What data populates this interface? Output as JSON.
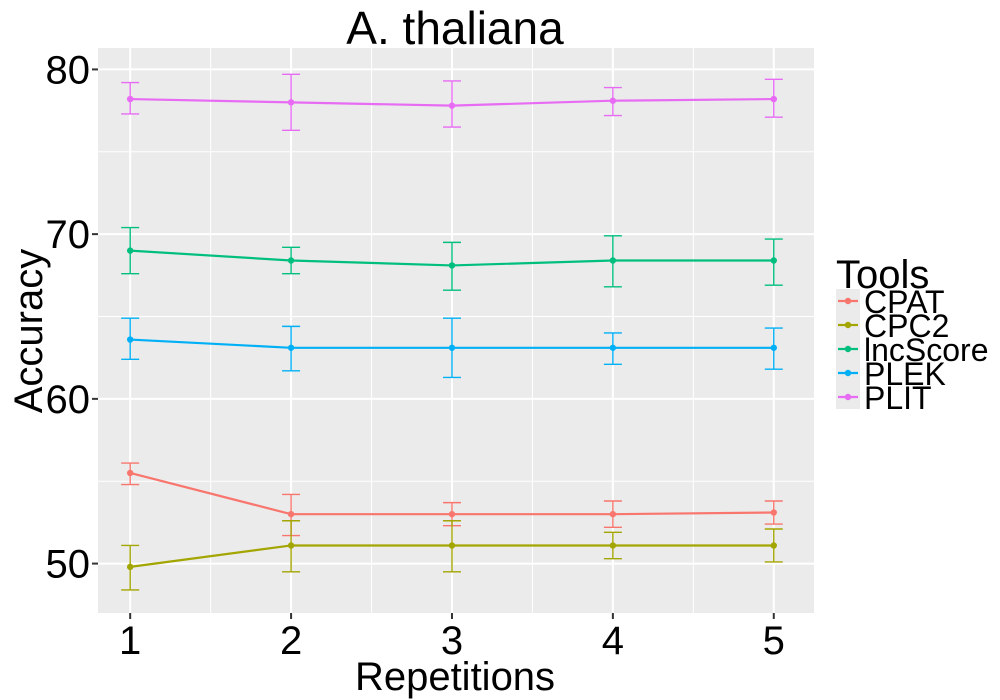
{
  "chart_data": {
    "type": "line",
    "title": "A. thaliana",
    "xlabel": "Repetitions",
    "ylabel": "Accuracy",
    "x": [
      1,
      2,
      3,
      4,
      5
    ],
    "x_ticks": [
      "1",
      "2",
      "3",
      "4",
      "5"
    ],
    "xlim": [
      0.8,
      5.25
    ],
    "y_ticks": [
      50,
      60,
      70,
      80
    ],
    "y_tick_labels": [
      "50",
      "60",
      "70",
      "80"
    ],
    "ylim": [
      47,
      81.3
    ],
    "grid": true,
    "legend": {
      "title": "Tools",
      "position": "right"
    },
    "series": [
      {
        "name": "CPAT",
        "color": "#F8766D",
        "values": [
          55.5,
          53.0,
          53.0,
          53.0,
          53.1
        ],
        "lower": [
          54.8,
          51.7,
          52.3,
          52.2,
          52.4
        ],
        "upper": [
          56.1,
          54.2,
          53.7,
          53.8,
          53.8
        ]
      },
      {
        "name": "CPC2",
        "color": "#A3A500",
        "values": [
          49.8,
          51.1,
          51.1,
          51.1,
          51.1
        ],
        "lower": [
          48.4,
          49.5,
          49.5,
          50.3,
          50.1
        ],
        "upper": [
          51.1,
          52.6,
          52.6,
          51.9,
          52.1
        ]
      },
      {
        "name": "lncScore",
        "color": "#00BF7D",
        "values": [
          69.0,
          68.4,
          68.1,
          68.4,
          68.4
        ],
        "lower": [
          67.6,
          67.6,
          66.6,
          66.8,
          66.9
        ],
        "upper": [
          70.4,
          69.2,
          69.5,
          69.9,
          69.7
        ]
      },
      {
        "name": "PLEK",
        "color": "#00B0F6",
        "values": [
          63.6,
          63.1,
          63.1,
          63.1,
          63.1
        ],
        "lower": [
          62.4,
          61.7,
          61.3,
          62.1,
          61.8
        ],
        "upper": [
          64.9,
          64.4,
          64.9,
          64.0,
          64.3
        ]
      },
      {
        "name": "PLIT",
        "color": "#E76BF3",
        "values": [
          78.2,
          78.0,
          77.8,
          78.1,
          78.2
        ],
        "lower": [
          77.3,
          76.3,
          76.5,
          77.2,
          77.1
        ],
        "upper": [
          79.2,
          79.7,
          79.3,
          78.9,
          79.4
        ]
      }
    ]
  }
}
